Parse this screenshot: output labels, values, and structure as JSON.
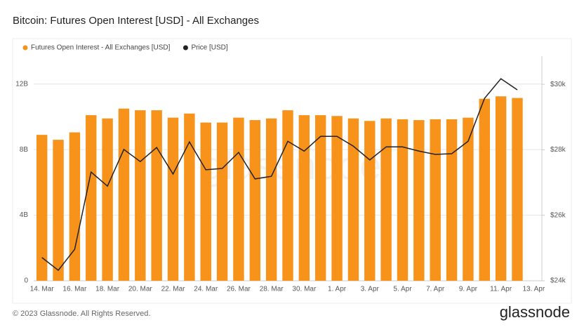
{
  "chart_data": {
    "type": "bar_line",
    "title": "Bitcoin: Futures Open Interest [USD] - All Exchanges",
    "categories": [
      "14. Mar",
      null,
      "16. Mar",
      null,
      "18. Mar",
      null,
      "20. Mar",
      null,
      "22. Mar",
      null,
      "24. Mar",
      null,
      "26. Mar",
      null,
      "28. Mar",
      null,
      "30. Mar",
      null,
      "1. Apr",
      null,
      "3. Apr",
      null,
      "5. Apr",
      null,
      "7. Apr",
      null,
      "9. Apr",
      null,
      "11. Apr",
      null,
      "13. Apr"
    ],
    "series": [
      {
        "name": "Futures Open Interest - All Exchanges [USD]",
        "type": "bar",
        "color": "#f7931a",
        "values": [
          8.9,
          8.6,
          9.05,
          10.1,
          9.9,
          10.5,
          10.4,
          10.4,
          9.95,
          10.2,
          9.65,
          9.65,
          9.95,
          9.8,
          9.9,
          10.4,
          10.1,
          10.1,
          10.05,
          9.9,
          9.75,
          9.9,
          9.85,
          9.8,
          9.85,
          9.85,
          9.95,
          11.1,
          11.25,
          11.15,
          null
        ]
      },
      {
        "name": "Price [USD]",
        "type": "line",
        "axis": "y2",
        "color": "#222222",
        "values": [
          24710,
          24320,
          24960,
          27320,
          26890,
          28010,
          27640,
          28070,
          27260,
          28240,
          27390,
          27430,
          27920,
          27110,
          27190,
          28260,
          27960,
          28410,
          28410,
          28110,
          27690,
          28090,
          28090,
          27960,
          27860,
          27880,
          28260,
          29570,
          30170,
          29830,
          null
        ]
      }
    ],
    "ylim": [
      0,
      13.7
    ],
    "yticks": [
      0,
      {
        "value": 4,
        "label": "4B"
      },
      {
        "value": 8,
        "label": "8B"
      },
      {
        "value": 12,
        "label": "12B"
      }
    ],
    "y2lim": [
      24000,
      30860
    ],
    "y2ticks": [
      {
        "value": 24000,
        "label": "$24k"
      },
      {
        "value": 26000,
        "label": "$26k"
      },
      {
        "value": 28000,
        "label": "$28k"
      },
      {
        "value": 30000,
        "label": "$30k"
      }
    ],
    "grid": true,
    "legend": "top-left"
  },
  "watermark": "glassnode",
  "footer": {
    "copyright": "© 2023 Glassnode. All Rights Reserved.",
    "logo": "glassnode"
  }
}
